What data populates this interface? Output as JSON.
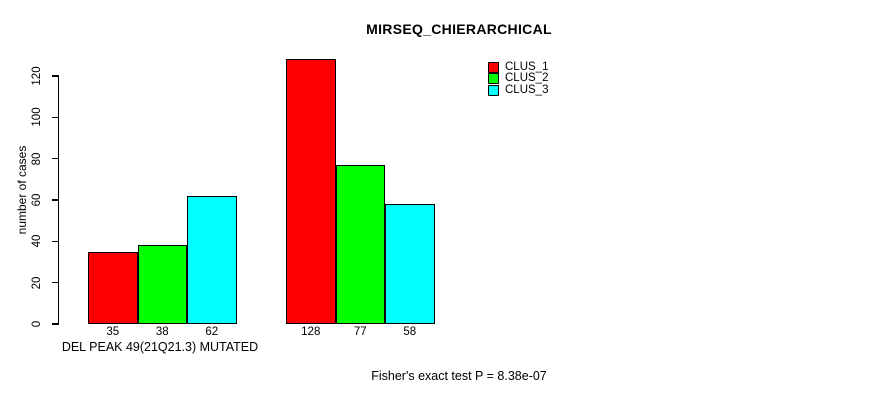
{
  "chart_data": {
    "type": "bar",
    "title": "MIRSEQ_CHIERARCHICAL",
    "ylabel": "number of cases",
    "categories": [
      "DEL PEAK 49(21Q21.3) MUTATED",
      ""
    ],
    "series": [
      {
        "name": "CLUS_1",
        "color": "#ff0000",
        "values": [
          35,
          128
        ]
      },
      {
        "name": "CLUS_2",
        "color": "#00ff00",
        "values": [
          38,
          77
        ]
      },
      {
        "name": "CLUS_3",
        "color": "#00ffff",
        "values": [
          62,
          58
        ]
      }
    ],
    "yticks": [
      0,
      20,
      40,
      60,
      80,
      100,
      120
    ],
    "ylim": [
      0,
      120
    ],
    "grid": false,
    "show_bar_values": true,
    "legend_position": "top-right",
    "annotation": "Fisher's exact test P = 8.38e-07",
    "colors": {
      "bar_border": "#000000",
      "axis": "#000000",
      "background": "#ffffff",
      "text": "#000000"
    }
  }
}
